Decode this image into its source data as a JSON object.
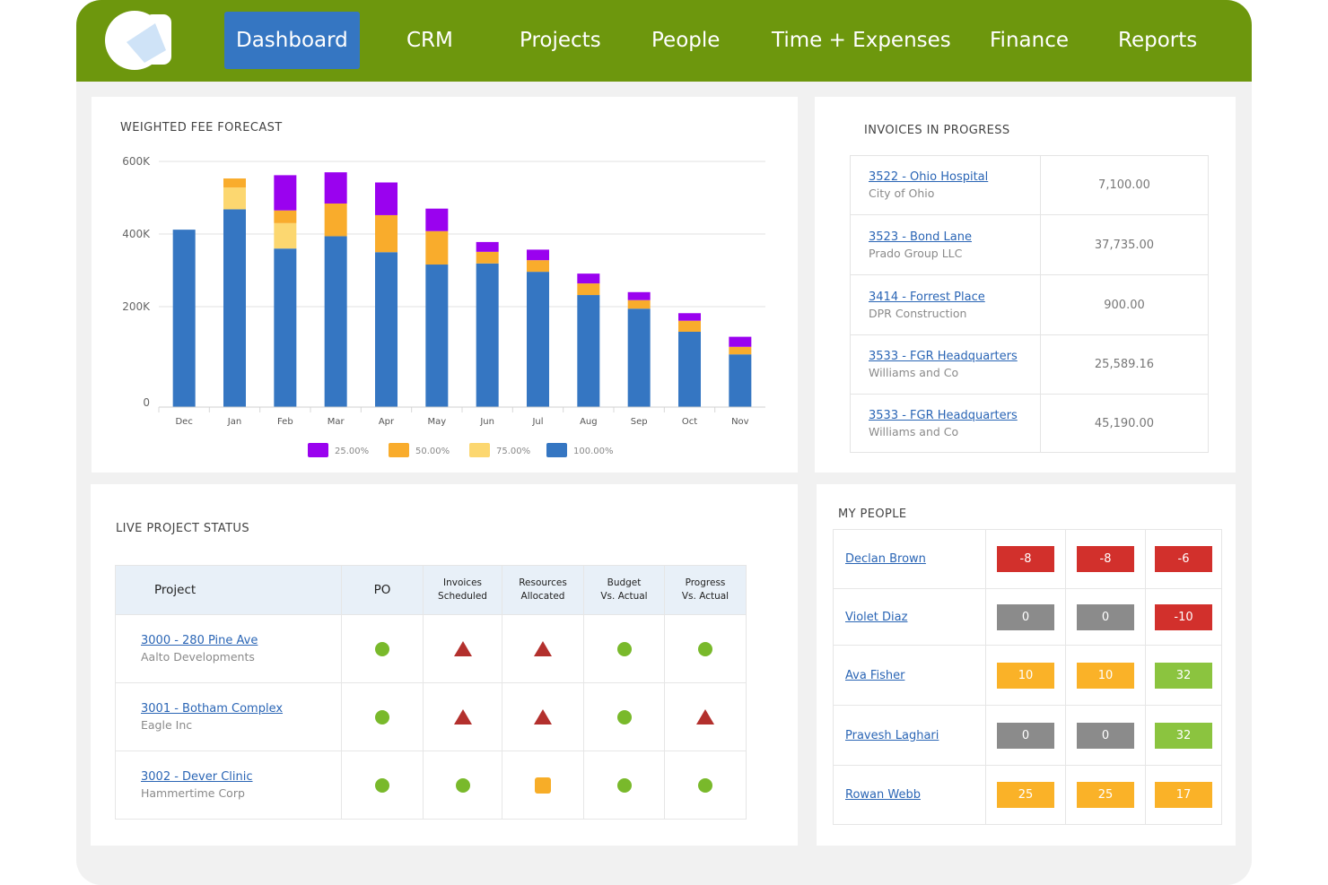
{
  "nav": {
    "items": [
      "Dashboard",
      "CRM",
      "Projects",
      "People",
      "Time + Expenses",
      "Finance",
      "Reports"
    ],
    "active": "Dashboard"
  },
  "forecast": {
    "title": "WEIGHTED FEE FORECAST"
  },
  "chart_data": {
    "type": "bar",
    "stacked": true,
    "categories": [
      "Dec",
      "Jan",
      "Feb",
      "Mar",
      "Apr",
      "May",
      "Jun",
      "Jul",
      "Aug",
      "Sep",
      "Oct",
      "Nov"
    ],
    "y_ticks": [
      "0",
      "200K",
      "400K",
      "600K"
    ],
    "ylim": [
      0,
      600000
    ],
    "series": [
      {
        "name": "100.00%",
        "color": "#3576c2",
        "values": [
          412000,
          468000,
          360000,
          394000,
          350000,
          316000,
          319000,
          296000,
          232000,
          196000,
          150000,
          105000
        ]
      },
      {
        "name": "75.00%",
        "color": "#fcd770",
        "values": [
          0,
          60000,
          70000,
          0,
          0,
          0,
          0,
          0,
          0,
          0,
          0,
          0
        ]
      },
      {
        "name": "50.00%",
        "color": "#f9ac2c",
        "values": [
          0,
          25000,
          35000,
          90000,
          102000,
          92000,
          32000,
          32000,
          32000,
          22000,
          22000,
          15000
        ]
      },
      {
        "name": "25.00%",
        "color": "#9a02ef",
        "values": [
          0,
          0,
          97000,
          86000,
          90000,
          62000,
          27000,
          29000,
          27000,
          22000,
          15000,
          20000
        ]
      }
    ],
    "legend": [
      "25.00%",
      "50.00%",
      "75.00%",
      "100.00%"
    ],
    "legend_position": "bottom",
    "grid": true
  },
  "invoices": {
    "title": "INVOICES IN PROGRESS",
    "rows": [
      {
        "name": "3522 - Ohio Hospital",
        "client": "City of Ohio",
        "amount": "7,100.00"
      },
      {
        "name": "3523 - Bond Lane",
        "client": "Prado Group LLC",
        "amount": "37,735.00"
      },
      {
        "name": "3414 - Forrest Place",
        "client": "DPR Construction",
        "amount": "900.00"
      },
      {
        "name": "3533 - FGR Headquarters",
        "client": "Williams and Co",
        "amount": "25,589.16"
      },
      {
        "name": "3533 - FGR Headquarters",
        "client": "Williams and Co",
        "amount": "45,190.00"
      }
    ]
  },
  "project_status": {
    "title": "LIVE PROJECT STATUS",
    "headers": {
      "project": "Project",
      "po": "PO",
      "invoices_1": "Invoices",
      "invoices_2": "Scheduled",
      "resources_1": "Resources",
      "resources_2": "Allocated",
      "budget_1": "Budget",
      "budget_2": "Vs. Actual",
      "progress_1": "Progress",
      "progress_2": "Vs. Actual"
    },
    "rows": [
      {
        "name": "3000 - 280 Pine Ave",
        "client": "Aalto Developments",
        "status": [
          "ok",
          "alert",
          "alert",
          "ok",
          "ok"
        ]
      },
      {
        "name": "3001 - Botham Complex",
        "client": "Eagle Inc",
        "status": [
          "ok",
          "alert",
          "alert",
          "ok",
          "alert"
        ]
      },
      {
        "name": "3002 - Dever Clinic",
        "client": "Hammertime Corp",
        "status": [
          "ok",
          "ok",
          "warn",
          "ok",
          "ok"
        ]
      }
    ]
  },
  "people": {
    "title": "MY PEOPLE",
    "rows": [
      {
        "name": "Declan Brown",
        "values": [
          {
            "v": "-8",
            "c": "red"
          },
          {
            "v": "-8",
            "c": "red"
          },
          {
            "v": "-6",
            "c": "red"
          }
        ]
      },
      {
        "name": "Violet Diaz",
        "values": [
          {
            "v": "0",
            "c": "grey"
          },
          {
            "v": "0",
            "c": "grey"
          },
          {
            "v": "-10",
            "c": "red"
          }
        ]
      },
      {
        "name": "Ava Fisher",
        "values": [
          {
            "v": "10",
            "c": "orange"
          },
          {
            "v": "10",
            "c": "orange"
          },
          {
            "v": "32",
            "c": "green"
          }
        ]
      },
      {
        "name": "Pravesh Laghari",
        "values": [
          {
            "v": "0",
            "c": "grey"
          },
          {
            "v": "0",
            "c": "grey"
          },
          {
            "v": "32",
            "c": "green"
          }
        ]
      },
      {
        "name": "Rowan Webb",
        "values": [
          {
            "v": "25",
            "c": "orange"
          },
          {
            "v": "25",
            "c": "orange"
          },
          {
            "v": "17",
            "c": "orange"
          }
        ]
      }
    ]
  }
}
